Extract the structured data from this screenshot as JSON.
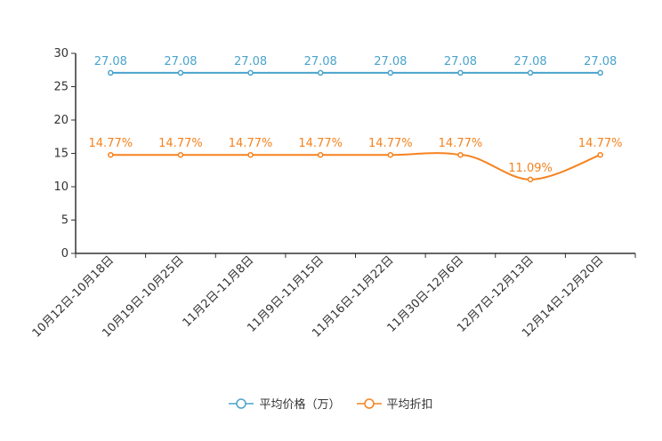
{
  "chart_data": {
    "type": "line",
    "categories": [
      "10月12日-10月18日",
      "10月19日-10月25日",
      "11月2日-11月8日",
      "11月9日-11月15日",
      "11月16日-11月22日",
      "11月30日-12月6日",
      "12月7日-12月13日",
      "12月14日-12月20日"
    ],
    "series": [
      {
        "name": "平均价格（万）",
        "values": [
          27.08,
          27.08,
          27.08,
          27.08,
          27.08,
          27.08,
          27.08,
          27.08
        ],
        "labels": [
          "27.08",
          "27.08",
          "27.08",
          "27.08",
          "27.08",
          "27.08",
          "27.08",
          "27.08"
        ],
        "color": "#4aa3cc"
      },
      {
        "name": "平均折扣",
        "values": [
          14.77,
          14.77,
          14.77,
          14.77,
          14.77,
          14.77,
          11.09,
          14.77
        ],
        "labels": [
          "14.77%",
          "14.77%",
          "14.77%",
          "14.77%",
          "14.77%",
          "14.77%",
          "11.09%",
          "14.77%"
        ],
        "color": "#f5821f"
      }
    ],
    "ylim": [
      0,
      30
    ],
    "yticks": [
      0,
      5,
      10,
      15,
      20,
      25,
      30
    ],
    "title": "",
    "xlabel": "",
    "ylabel": "",
    "legend_position": "bottom-center",
    "grid": false
  }
}
